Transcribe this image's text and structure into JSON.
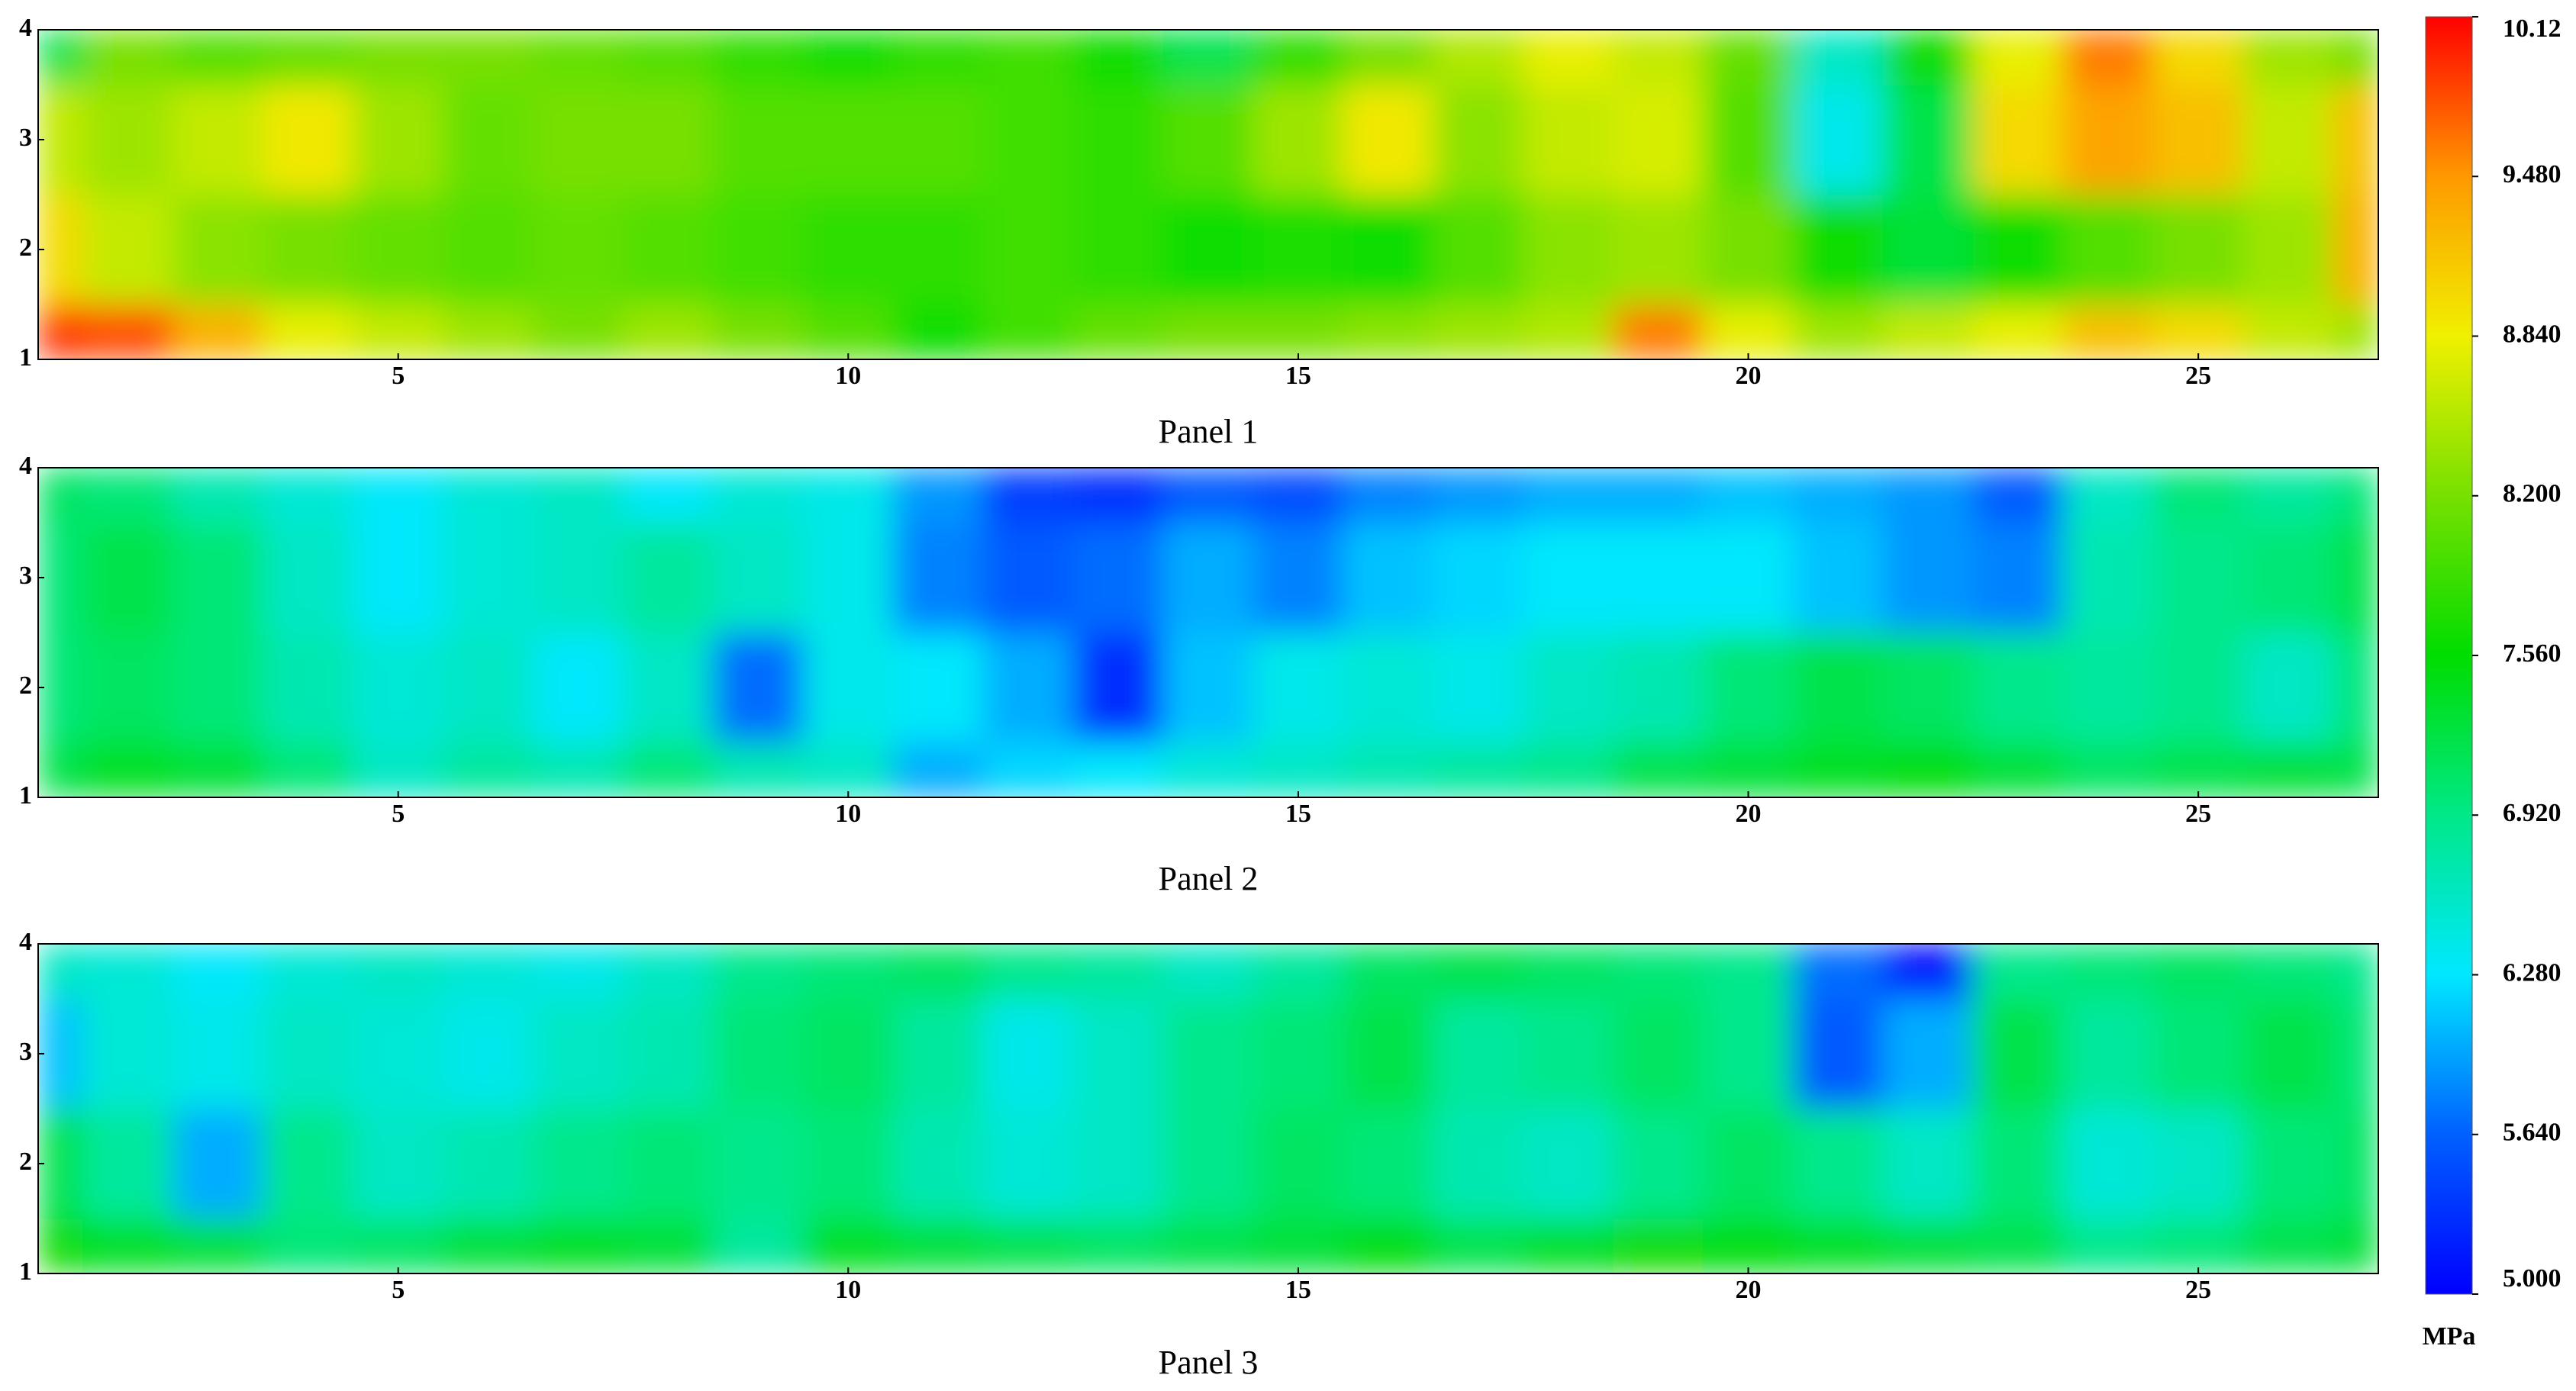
{
  "chart_data": [
    {
      "type": "heatmap",
      "title": "Panel 1",
      "x": [
        1,
        2,
        3,
        4,
        5,
        6,
        7,
        8,
        9,
        10,
        11,
        12,
        13,
        14,
        15,
        16,
        17,
        18,
        19,
        20,
        21,
        22,
        23,
        24,
        25,
        26,
        27
      ],
      "y": [
        1,
        2,
        3,
        4
      ],
      "z": [
        [
          9.9,
          9.8,
          9.3,
          8.8,
          8.6,
          8.4,
          8.2,
          8.4,
          8.2,
          8.0,
          7.6,
          7.9,
          8.1,
          8.2,
          8.2,
          8.3,
          8.4,
          8.5,
          9.6,
          8.8,
          8.4,
          8.6,
          8.8,
          9.2,
          9.0,
          8.6,
          8.4
        ],
        [
          9.0,
          8.6,
          8.3,
          8.2,
          8.1,
          8.0,
          8.1,
          8.0,
          7.9,
          7.8,
          7.8,
          7.9,
          7.8,
          7.6,
          7.7,
          7.6,
          8.0,
          8.3,
          8.4,
          8.2,
          7.6,
          7.3,
          7.6,
          8.0,
          8.2,
          8.4,
          9.3
        ],
        [
          8.6,
          8.4,
          8.6,
          8.9,
          8.4,
          8.1,
          8.2,
          8.2,
          8.0,
          8.0,
          8.0,
          7.9,
          7.8,
          8.0,
          8.4,
          8.9,
          8.3,
          8.6,
          8.7,
          8.0,
          6.4,
          7.2,
          9.0,
          9.4,
          9.2,
          8.6,
          9.2
        ],
        [
          7.2,
          8.2,
          8.0,
          8.1,
          8.2,
          8.2,
          8.1,
          8.0,
          7.8,
          7.6,
          7.8,
          7.9,
          7.6,
          7.2,
          7.8,
          8.2,
          8.5,
          8.8,
          8.6,
          8.1,
          6.6,
          7.6,
          8.8,
          9.6,
          9.0,
          8.4,
          8.2
        ]
      ],
      "xlim": [
        1,
        27
      ],
      "xticks": [
        5,
        10,
        15,
        20,
        25
      ],
      "ylim": [
        1,
        4
      ],
      "yticks": [
        1,
        2,
        3,
        4
      ]
    },
    {
      "type": "heatmap",
      "title": "Panel 2",
      "x": [
        1,
        2,
        3,
        4,
        5,
        6,
        7,
        8,
        9,
        10,
        11,
        12,
        13,
        14,
        15,
        16,
        17,
        18,
        19,
        20,
        21,
        22,
        23,
        24,
        25,
        26,
        27
      ],
      "y": [
        1,
        2,
        3,
        4
      ],
      "z": [
        [
          7.2,
          7.4,
          7.3,
          7.0,
          6.6,
          6.8,
          6.7,
          7.0,
          6.7,
          6.6,
          6.0,
          6.2,
          6.3,
          6.5,
          6.6,
          6.7,
          6.8,
          6.9,
          7.2,
          7.3,
          7.4,
          7.5,
          7.3,
          7.1,
          7.2,
          7.3,
          7.2
        ],
        [
          7.0,
          7.1,
          7.0,
          6.7,
          6.5,
          6.6,
          6.3,
          6.6,
          5.7,
          6.4,
          6.3,
          6.0,
          5.3,
          6.1,
          6.4,
          6.5,
          6.4,
          6.6,
          6.7,
          7.0,
          7.2,
          7.1,
          6.9,
          6.8,
          6.9,
          6.6,
          7.0
        ],
        [
          7.0,
          7.2,
          7.0,
          6.6,
          6.3,
          6.5,
          6.6,
          6.8,
          6.6,
          6.4,
          5.8,
          5.6,
          5.7,
          6.0,
          5.8,
          6.1,
          6.2,
          6.3,
          6.3,
          6.3,
          6.1,
          5.9,
          5.8,
          6.7,
          6.9,
          7.0,
          7.2
        ],
        [
          7.1,
          7.0,
          6.7,
          6.5,
          6.3,
          6.5,
          6.6,
          6.3,
          6.5,
          6.4,
          5.9,
          5.4,
          5.3,
          5.6,
          5.5,
          5.8,
          5.9,
          6.0,
          6.0,
          6.1,
          6.0,
          5.9,
          5.6,
          6.6,
          7.0,
          6.8,
          7.0
        ]
      ],
      "xlim": [
        1,
        27
      ],
      "xticks": [
        5,
        10,
        15,
        20,
        25
      ],
      "ylim": [
        1,
        4
      ],
      "yticks": [
        1,
        2,
        3,
        4
      ]
    },
    {
      "type": "heatmap",
      "title": "Panel 3",
      "x": [
        1,
        2,
        3,
        4,
        5,
        6,
        7,
        8,
        9,
        10,
        11,
        12,
        13,
        14,
        15,
        16,
        17,
        18,
        19,
        20,
        21,
        22,
        23,
        24,
        25,
        26,
        27
      ],
      "y": [
        1,
        2,
        3,
        4
      ],
      "z": [
        [
          7.6,
          7.4,
          7.3,
          7.0,
          7.1,
          7.3,
          7.4,
          7.3,
          6.8,
          7.4,
          7.3,
          7.2,
          7.1,
          7.2,
          7.3,
          7.5,
          7.2,
          7.4,
          7.6,
          7.5,
          7.4,
          7.3,
          7.2,
          6.9,
          7.0,
          7.2,
          7.3
        ],
        [
          7.2,
          6.8,
          6.0,
          6.9,
          6.6,
          6.7,
          6.9,
          7.0,
          6.9,
          7.0,
          6.7,
          6.5,
          6.6,
          6.9,
          7.1,
          7.0,
          6.7,
          6.6,
          6.9,
          7.1,
          6.9,
          6.6,
          7.0,
          6.5,
          6.6,
          7.0,
          7.1
        ],
        [
          6.1,
          6.5,
          6.4,
          6.6,
          6.5,
          6.4,
          6.6,
          6.7,
          7.0,
          7.1,
          6.8,
          6.4,
          6.6,
          6.9,
          7.0,
          7.2,
          6.8,
          6.9,
          7.1,
          6.9,
          5.6,
          6.0,
          7.2,
          6.8,
          7.0,
          7.2,
          7.0
        ],
        [
          6.6,
          6.5,
          6.3,
          6.5,
          6.6,
          6.5,
          6.4,
          6.6,
          6.9,
          7.0,
          7.1,
          6.9,
          6.8,
          6.6,
          6.8,
          7.1,
          7.2,
          7.1,
          7.0,
          6.9,
          5.7,
          5.1,
          6.9,
          7.0,
          7.1,
          7.0,
          6.9
        ]
      ],
      "xlim": [
        1,
        27
      ],
      "xticks": [
        5,
        10,
        15,
        20,
        25
      ],
      "ylim": [
        1,
        4
      ],
      "yticks": [
        1,
        2,
        3,
        4
      ]
    }
  ],
  "colorbar": {
    "label": "MPa",
    "lim": [
      5,
      10.12
    ],
    "ticks": [
      {
        "value": 5,
        "label": "5.000"
      },
      {
        "value": 5.64,
        "label": "5.640"
      },
      {
        "value": 6.28,
        "label": "6.280"
      },
      {
        "value": 6.92,
        "label": "6.920"
      },
      {
        "value": 7.56,
        "label": "7.560"
      },
      {
        "value": 8.2,
        "label": "8.200"
      },
      {
        "value": 8.84,
        "label": "8.840"
      },
      {
        "value": 9.48,
        "label": "9.480"
      },
      10.12
    ],
    "colors": [
      "#0000ff",
      "#0060ff",
      "#00e8ff",
      "#00e888",
      "#00dd00",
      "#77e000",
      "#f0f000",
      "#ff9900",
      "#ff0000"
    ]
  }
}
